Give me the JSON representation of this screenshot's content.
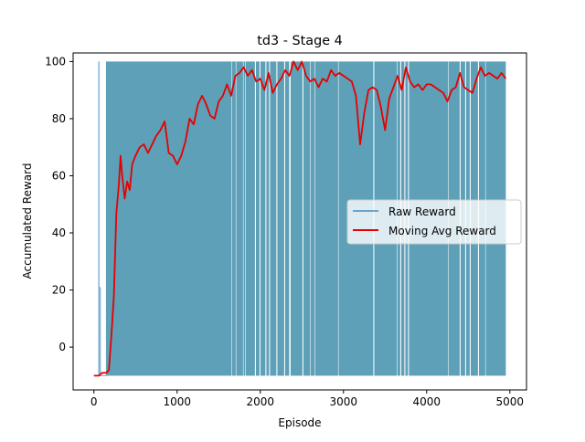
{
  "chart_data": {
    "type": "line",
    "title": "td3 - Stage 4",
    "xlabel": "Episode",
    "ylabel": "Accumulated Reward",
    "xlim": [
      -250,
      5200
    ],
    "ylim": [
      -15,
      103
    ],
    "xticks": [
      0,
      1000,
      2000,
      3000,
      4000,
      5000
    ],
    "yticks": [
      0,
      20,
      40,
      60,
      80,
      100
    ],
    "grid": false,
    "legend_position": "center-right",
    "raw_reward": {
      "name": "Raw Reward",
      "color": "#1f77b4",
      "episodes": 4950,
      "min": -10,
      "max": 100,
      "dense_start": 150,
      "early_spikes": [
        {
          "episode": 60,
          "value": 100
        },
        {
          "episode": 75,
          "value": 21
        }
      ],
      "gaps": [
        [
          1650,
          1665
        ],
        [
          1700,
          1715
        ],
        [
          1790,
          1800
        ],
        [
          1815,
          1830
        ],
        [
          1935,
          1950
        ],
        [
          1990,
          2005
        ],
        [
          2060,
          2075
        ],
        [
          2105,
          2120
        ],
        [
          2190,
          2205
        ],
        [
          2285,
          2300
        ],
        [
          2345,
          2365
        ],
        [
          2505,
          2520
        ],
        [
          2595,
          2610
        ],
        [
          2650,
          2665
        ],
        [
          2930,
          2945
        ],
        [
          3355,
          3370
        ],
        [
          3640,
          3655
        ],
        [
          3680,
          3695
        ],
        [
          3730,
          3745
        ],
        [
          3775,
          3790
        ],
        [
          4255,
          4270
        ],
        [
          4395,
          4410
        ],
        [
          4460,
          4475
        ],
        [
          4515,
          4530
        ],
        [
          4615,
          4630
        ],
        [
          4700,
          4715
        ]
      ]
    },
    "moving_avg": {
      "name": "Moving Avg Reward",
      "color": "#e60000",
      "x": [
        0,
        60,
        100,
        150,
        180,
        210,
        240,
        270,
        300,
        320,
        340,
        370,
        400,
        430,
        460,
        500,
        550,
        600,
        650,
        700,
        750,
        800,
        850,
        900,
        950,
        1000,
        1050,
        1100,
        1150,
        1200,
        1250,
        1300,
        1350,
        1400,
        1450,
        1500,
        1550,
        1600,
        1650,
        1700,
        1750,
        1800,
        1850,
        1900,
        1950,
        2000,
        2050,
        2100,
        2150,
        2200,
        2250,
        2300,
        2350,
        2400,
        2450,
        2500,
        2550,
        2600,
        2650,
        2700,
        2750,
        2800,
        2850,
        2900,
        2950,
        3000,
        3050,
        3100,
        3150,
        3200,
        3250,
        3300,
        3350,
        3400,
        3450,
        3500,
        3550,
        3600,
        3650,
        3700,
        3750,
        3800,
        3850,
        3900,
        3950,
        4000,
        4050,
        4100,
        4150,
        4200,
        4250,
        4300,
        4350,
        4400,
        4450,
        4500,
        4550,
        4600,
        4650,
        4700,
        4750,
        4800,
        4850,
        4900,
        4950
      ],
      "y": [
        -10,
        -10,
        -9,
        -9,
        -8,
        4,
        18,
        47,
        57,
        67,
        60,
        52,
        58,
        55,
        64,
        67,
        70,
        71,
        68,
        71,
        74,
        76,
        79,
        68,
        67,
        64,
        67,
        72,
        80,
        78,
        85,
        88,
        85,
        81,
        80,
        86,
        88,
        92,
        88,
        95,
        96,
        98,
        95,
        97,
        93,
        94,
        90,
        96,
        89,
        92,
        94,
        97,
        95,
        100,
        97,
        100,
        95,
        93,
        94,
        91,
        94,
        93,
        97,
        95,
        96,
        95,
        94,
        93,
        88,
        71,
        82,
        90,
        91,
        90,
        84,
        76,
        87,
        91,
        95,
        90,
        98,
        93,
        91,
        92,
        90,
        92,
        92,
        91,
        90,
        89,
        86,
        90,
        91,
        96,
        91,
        90,
        89,
        94,
        98,
        95,
        96,
        95,
        94,
        96,
        94
      ]
    },
    "legend": [
      "Raw Reward",
      "Moving Avg Reward"
    ]
  }
}
